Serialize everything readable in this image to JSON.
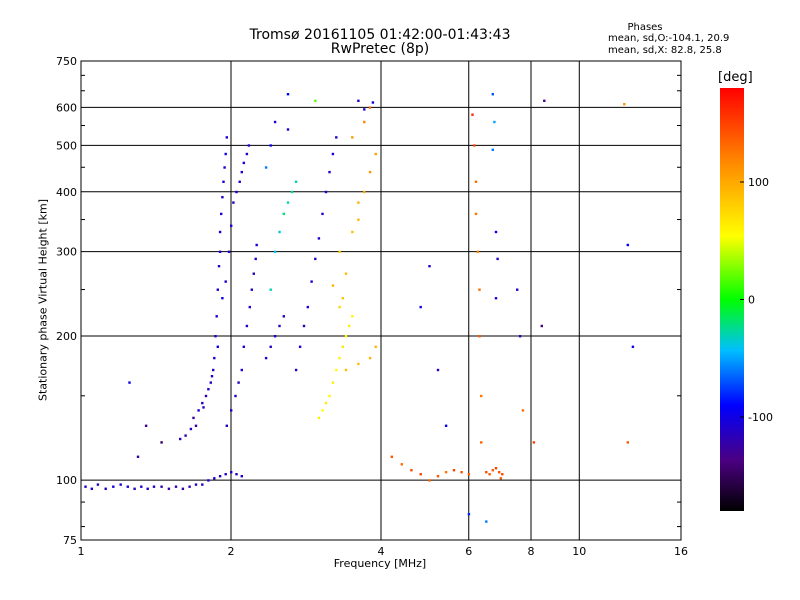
{
  "header": {
    "title_line1": "Tromsø 20161105 01:42:00-01:43:43",
    "title_line2": "RwPretec (8p)"
  },
  "phases": {
    "header": "Phases",
    "stat_o": "mean, sd,O:-104.1, 20.9",
    "stat_x": "mean, sd,X: 82.8, 25.8"
  },
  "colorbar": {
    "label": "[deg]",
    "ticks": [
      {
        "value": 100,
        "label": "100"
      },
      {
        "value": 0,
        "label": "0"
      },
      {
        "value": -100,
        "label": "-100"
      }
    ],
    "range": [
      -180,
      180
    ]
  },
  "chart_data": {
    "type": "scatter",
    "title": "Tromsø 20161105 01:42:00-01:43:43",
    "subtitle": "RwPretec (8p)",
    "xlabel": "Frequency [MHz]",
    "ylabel": "Stationary phase Virtual Height [km]",
    "xscale": "log",
    "yscale": "log",
    "xlim": [
      1,
      16
    ],
    "ylim": [
      75,
      750
    ],
    "grid": true,
    "x_ticks": [
      {
        "v": 1,
        "l": "1"
      },
      {
        "v": 2,
        "l": "2"
      },
      {
        "v": 4,
        "l": "4"
      },
      {
        "v": 6,
        "l": "6"
      },
      {
        "v": 8,
        "l": "8"
      },
      {
        "v": 10,
        "l": "10"
      },
      {
        "v": 16,
        "l": "16"
      }
    ],
    "y_ticks": [
      {
        "v": 75,
        "l": "75"
      },
      {
        "v": 100,
        "l": "100"
      },
      {
        "v": 200,
        "l": "200"
      },
      {
        "v": 300,
        "l": "300"
      },
      {
        "v": 400,
        "l": "400"
      },
      {
        "v": 500,
        "l": "500"
      },
      {
        "v": 600,
        "l": "600"
      },
      {
        "v": 750,
        "l": "750"
      }
    ],
    "points": [
      [
        1.02,
        97,
        -110
      ],
      [
        1.05,
        96,
        -105
      ],
      [
        1.08,
        98,
        -112
      ],
      [
        1.12,
        96,
        -108
      ],
      [
        1.16,
        97,
        -104
      ],
      [
        1.2,
        98,
        -110
      ],
      [
        1.24,
        97,
        -106
      ],
      [
        1.28,
        96,
        -112
      ],
      [
        1.32,
        97,
        -108
      ],
      [
        1.36,
        96,
        -104
      ],
      [
        1.4,
        97,
        -110
      ],
      [
        1.45,
        97,
        -120
      ],
      [
        1.5,
        96,
        -125
      ],
      [
        1.55,
        97,
        -118
      ],
      [
        1.6,
        96,
        -122
      ],
      [
        1.65,
        97,
        -115
      ],
      [
        1.7,
        98,
        -110
      ],
      [
        1.75,
        98,
        -112
      ],
      [
        1.8,
        100,
        -108
      ],
      [
        1.85,
        101,
        -110
      ],
      [
        1.9,
        102,
        -115
      ],
      [
        1.95,
        103,
        -110
      ],
      [
        2.0,
        104,
        -108
      ],
      [
        2.05,
        103,
        -112
      ],
      [
        2.1,
        102,
        -105
      ],
      [
        1.25,
        160,
        -100
      ],
      [
        1.3,
        112,
        -120
      ],
      [
        1.35,
        130,
        -130
      ],
      [
        1.45,
        120,
        -150
      ],
      [
        1.58,
        122,
        -115
      ],
      [
        1.62,
        124,
        -120
      ],
      [
        1.66,
        128,
        -110
      ],
      [
        1.7,
        130,
        -125
      ],
      [
        1.72,
        140,
        -105
      ],
      [
        1.75,
        145,
        -110
      ],
      [
        1.78,
        150,
        -118
      ],
      [
        1.8,
        155,
        -108
      ],
      [
        1.82,
        160,
        -115
      ],
      [
        1.84,
        170,
        -110
      ],
      [
        1.85,
        180,
        -105
      ],
      [
        1.86,
        200,
        -112
      ],
      [
        1.87,
        220,
        -108
      ],
      [
        1.88,
        250,
        -110
      ],
      [
        1.89,
        280,
        -115
      ],
      [
        1.9,
        300,
        -110
      ],
      [
        1.9,
        330,
        -105
      ],
      [
        1.91,
        360,
        -112
      ],
      [
        1.92,
        390,
        -108
      ],
      [
        1.93,
        420,
        -110
      ],
      [
        1.94,
        450,
        -104
      ],
      [
        1.95,
        480,
        -100
      ],
      [
        1.96,
        520,
        -108
      ],
      [
        1.68,
        135,
        -125
      ],
      [
        1.76,
        142,
        -115
      ],
      [
        1.83,
        165,
        -110
      ],
      [
        1.88,
        190,
        -95
      ],
      [
        1.92,
        240,
        -100
      ],
      [
        1.95,
        260,
        -108
      ],
      [
        1.98,
        300,
        -110
      ],
      [
        2.0,
        340,
        -105
      ],
      [
        2.02,
        380,
        -112
      ],
      [
        2.05,
        400,
        -104
      ],
      [
        2.08,
        420,
        -108
      ],
      [
        2.1,
        440,
        -110
      ],
      [
        2.12,
        460,
        -106
      ],
      [
        2.15,
        480,
        -112
      ],
      [
        2.17,
        500,
        -110
      ],
      [
        1.96,
        130,
        -115
      ],
      [
        2.0,
        140,
        -110
      ],
      [
        2.04,
        150,
        -108
      ],
      [
        2.07,
        160,
        -112
      ],
      [
        2.1,
        170,
        -105
      ],
      [
        2.12,
        190,
        -110
      ],
      [
        2.15,
        210,
        -112
      ],
      [
        2.18,
        230,
        -108
      ],
      [
        2.2,
        250,
        -110
      ],
      [
        2.22,
        270,
        -115
      ],
      [
        2.24,
        290,
        -110
      ],
      [
        2.25,
        310,
        -104
      ],
      [
        2.35,
        180,
        -110
      ],
      [
        2.4,
        190,
        -112
      ],
      [
        2.45,
        200,
        -108
      ],
      [
        2.5,
        210,
        -115
      ],
      [
        2.55,
        220,
        -110
      ],
      [
        2.4,
        250,
        -30
      ],
      [
        2.45,
        300,
        -40
      ],
      [
        2.5,
        330,
        -35
      ],
      [
        2.55,
        360,
        -20
      ],
      [
        2.6,
        380,
        -30
      ],
      [
        2.65,
        400,
        -25
      ],
      [
        2.7,
        420,
        -30
      ],
      [
        2.35,
        450,
        -60
      ],
      [
        2.4,
        500,
        -100
      ],
      [
        2.45,
        560,
        -110
      ],
      [
        2.6,
        540,
        -108
      ],
      [
        2.7,
        170,
        -115
      ],
      [
        2.75,
        190,
        -110
      ],
      [
        2.8,
        210,
        -112
      ],
      [
        2.85,
        230,
        -108
      ],
      [
        2.9,
        260,
        -110
      ],
      [
        2.95,
        290,
        -115
      ],
      [
        3.0,
        320,
        -110
      ],
      [
        3.05,
        360,
        -112
      ],
      [
        3.1,
        400,
        -108
      ],
      [
        3.15,
        440,
        -110
      ],
      [
        3.2,
        480,
        -104
      ],
      [
        3.25,
        520,
        -110
      ],
      [
        3.0,
        135,
        60
      ],
      [
        3.05,
        140,
        55
      ],
      [
        3.1,
        145,
        65
      ],
      [
        3.15,
        150,
        58
      ],
      [
        3.2,
        160,
        62
      ],
      [
        3.25,
        170,
        55
      ],
      [
        3.3,
        180,
        60
      ],
      [
        3.35,
        190,
        65
      ],
      [
        3.4,
        200,
        58
      ],
      [
        3.45,
        210,
        62
      ],
      [
        3.5,
        220,
        60
      ],
      [
        3.3,
        230,
        75
      ],
      [
        3.35,
        240,
        85
      ],
      [
        3.2,
        255,
        95
      ],
      [
        3.4,
        270,
        90
      ],
      [
        3.3,
        300,
        80
      ],
      [
        3.5,
        330,
        88
      ],
      [
        3.6,
        350,
        92
      ],
      [
        3.6,
        380,
        95
      ],
      [
        3.7,
        400,
        100
      ],
      [
        3.8,
        440,
        110
      ],
      [
        3.9,
        480,
        105
      ],
      [
        3.5,
        520,
        108
      ],
      [
        3.7,
        560,
        120
      ],
      [
        3.8,
        600,
        130
      ],
      [
        3.4,
        170,
        90
      ],
      [
        3.6,
        175,
        88
      ],
      [
        3.8,
        180,
        95
      ],
      [
        3.9,
        190,
        92
      ],
      [
        2.6,
        640,
        -90
      ],
      [
        2.95,
        620,
        20
      ],
      [
        3.6,
        620,
        -110
      ],
      [
        3.85,
        615,
        -100
      ],
      [
        3.7,
        595,
        -105
      ],
      [
        4.2,
        112,
        140
      ],
      [
        4.4,
        108,
        130
      ],
      [
        4.6,
        105,
        145
      ],
      [
        4.8,
        103,
        150
      ],
      [
        5.0,
        100,
        135
      ],
      [
        5.2,
        102,
        140
      ],
      [
        5.4,
        104,
        125
      ],
      [
        5.6,
        105,
        150
      ],
      [
        5.8,
        104,
        142
      ],
      [
        6.0,
        103,
        135
      ],
      [
        6.5,
        104,
        145
      ],
      [
        6.6,
        103,
        140
      ],
      [
        6.7,
        105,
        138
      ],
      [
        6.8,
        106,
        150
      ],
      [
        6.9,
        104,
        142
      ],
      [
        7.0,
        103,
        146
      ],
      [
        6.95,
        101,
        135
      ],
      [
        6.1,
        580,
        160
      ],
      [
        6.15,
        500,
        150
      ],
      [
        6.2,
        420,
        130
      ],
      [
        6.2,
        360,
        125
      ],
      [
        6.25,
        300,
        120
      ],
      [
        6.3,
        250,
        130
      ],
      [
        6.3,
        200,
        140
      ],
      [
        6.35,
        150,
        125
      ],
      [
        6.35,
        120,
        135
      ],
      [
        6.7,
        490,
        -60
      ],
      [
        6.75,
        560,
        -50
      ],
      [
        6.7,
        640,
        -70
      ],
      [
        6.8,
        330,
        -90
      ],
      [
        6.85,
        290,
        -110
      ],
      [
        6.8,
        240,
        -105
      ],
      [
        7.5,
        250,
        -110
      ],
      [
        7.6,
        200,
        -120
      ],
      [
        7.7,
        140,
        130
      ],
      [
        8.1,
        120,
        150
      ],
      [
        8.4,
        210,
        -140
      ],
      [
        8.5,
        620,
        -130
      ],
      [
        12.3,
        610,
        110
      ],
      [
        12.5,
        310,
        -90
      ],
      [
        12.5,
        120,
        140
      ],
      [
        12.8,
        190,
        -100
      ],
      [
        5.0,
        280,
        -110
      ],
      [
        5.2,
        170,
        -120
      ],
      [
        4.8,
        230,
        -100
      ],
      [
        5.4,
        130,
        -95
      ],
      [
        6.0,
        85,
        -80
      ],
      [
        6.5,
        82,
        -60
      ]
    ]
  }
}
